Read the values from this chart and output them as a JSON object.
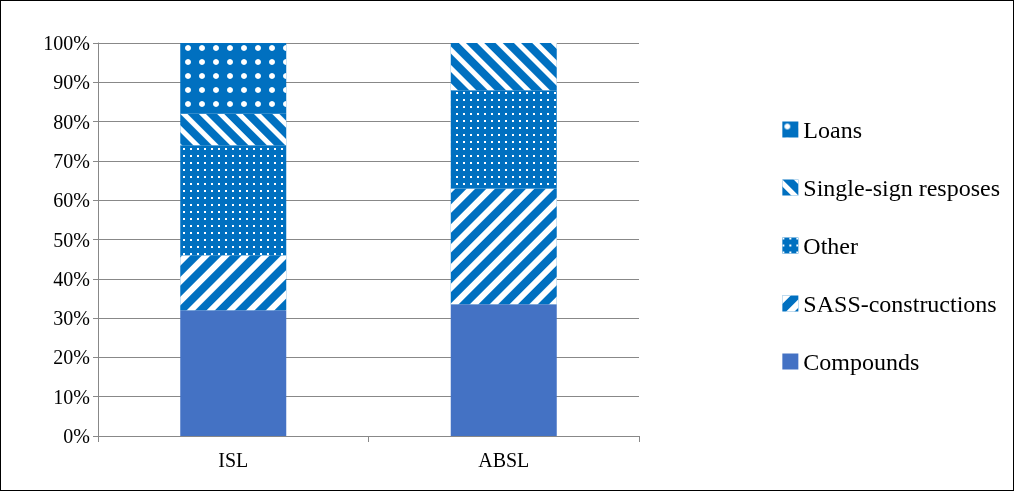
{
  "chart_data": {
    "type": "bar",
    "stacked": true,
    "categories": [
      "ISL",
      "ABSL"
    ],
    "series": [
      {
        "name": "Compounds",
        "color": "#4472c4",
        "values": [
          32,
          33.5
        ]
      },
      {
        "name": "SASS-constructions",
        "color": "#0070c0",
        "values": [
          14,
          29.5
        ]
      },
      {
        "name": "Other",
        "color": "#0070c0",
        "values": [
          28,
          25
        ]
      },
      {
        "name": "Single-sign resposes",
        "color": "#0070c0",
        "values": [
          8,
          12
        ]
      },
      {
        "name": "Loans",
        "color": "#0070c0",
        "values": [
          18,
          0
        ]
      }
    ],
    "ylim": [
      0,
      100
    ],
    "yticks": [
      {
        "value": 0,
        "label": "0%"
      },
      {
        "value": 10,
        "label": "10%"
      },
      {
        "value": 20,
        "label": "20%"
      },
      {
        "value": 30,
        "label": "30%"
      },
      {
        "value": 40,
        "label": "40%"
      },
      {
        "value": 50,
        "label": "50%"
      },
      {
        "value": 60,
        "label": "60%"
      },
      {
        "value": 70,
        "label": "70%"
      },
      {
        "value": 80,
        "label": "80%"
      },
      {
        "value": 90,
        "label": "90%"
      },
      {
        "value": 100,
        "label": "100%"
      }
    ],
    "grid": "y",
    "legend": "right"
  }
}
